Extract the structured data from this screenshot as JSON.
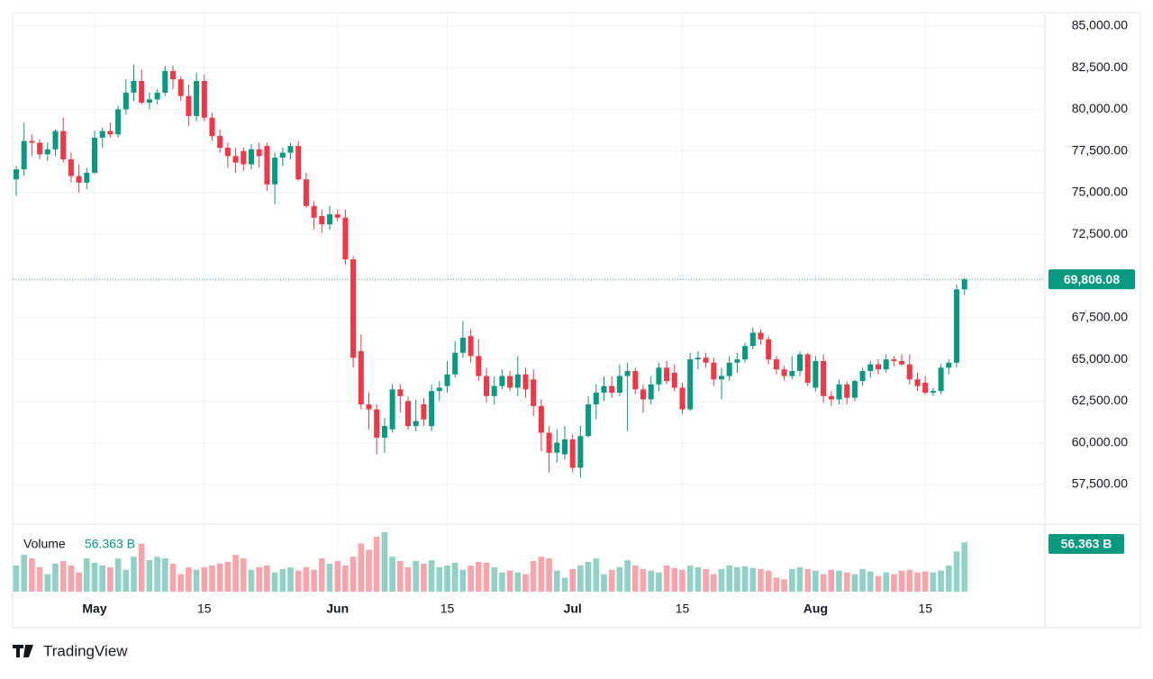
{
  "chart_data": {
    "type": "candlestick",
    "dates": [
      "Apr 21",
      "Apr 22",
      "Apr 23",
      "Apr 24",
      "Apr 25",
      "Apr 26",
      "Apr 27",
      "Apr 28",
      "Apr 29",
      "Apr 30",
      "May 1",
      "May 2",
      "May 3",
      "May 4",
      "May 5",
      "May 6",
      "May 7",
      "May 8",
      "May 9",
      "May 10",
      "May 11",
      "May 12",
      "May 13",
      "May 14",
      "May 15",
      "May 16",
      "May 17",
      "May 18",
      "May 19",
      "May 20",
      "May 21",
      "May 22",
      "May 23",
      "May 24",
      "May 25",
      "May 26",
      "May 27",
      "May 28",
      "May 29",
      "May 30",
      "May 31",
      "Jun 1",
      "Jun 2",
      "Jun 3",
      "Jun 4",
      "Jun 5",
      "Jun 6",
      "Jun 7",
      "Jun 8",
      "Jun 9",
      "Jun 10",
      "Jun 11",
      "Jun 12",
      "Jun 13",
      "Jun 14",
      "Jun 15",
      "Jun 16",
      "Jun 17",
      "Jun 18",
      "Jun 19",
      "Jun 20",
      "Jun 21",
      "Jun 22",
      "Jun 23",
      "Jun 24",
      "Jun 25",
      "Jun 26",
      "Jun 27",
      "Jun 28",
      "Jun 29",
      "Jun 30",
      "Jul 1",
      "Jul 2",
      "Jul 3",
      "Jul 4",
      "Jul 5",
      "Jul 6",
      "Jul 7",
      "Jul 8",
      "Jul 9",
      "Jul 10",
      "Jul 11",
      "Jul 12",
      "Jul 13",
      "Jul 14",
      "Jul 15",
      "Jul 16",
      "Jul 17",
      "Jul 18",
      "Jul 19",
      "Jul 20",
      "Jul 21",
      "Jul 22",
      "Jul 23",
      "Jul 24",
      "Jul 25",
      "Jul 26",
      "Jul 27",
      "Jul 28",
      "Jul 29",
      "Jul 30",
      "Jul 31",
      "Aug 1",
      "Aug 2",
      "Aug 3",
      "Aug 4",
      "Aug 5",
      "Aug 6",
      "Aug 7",
      "Aug 8",
      "Aug 9",
      "Aug 10",
      "Aug 11",
      "Aug 12",
      "Aug 13",
      "Aug 14",
      "Aug 15",
      "Aug 16",
      "Aug 17",
      "Aug 18",
      "Aug 19",
      "Aug 20"
    ],
    "open": [
      75800,
      76400,
      78100,
      78000,
      77300,
      77600,
      78700,
      77000,
      76000,
      75600,
      76200,
      78300,
      78700,
      78500,
      80000,
      81000,
      81700,
      80400,
      80600,
      81000,
      82300,
      81800,
      80800,
      79600,
      81700,
      79500,
      78400,
      77700,
      77200,
      77500,
      76700,
      77600,
      77800,
      75500,
      77100,
      77400,
      77800,
      75800,
      74200,
      73600,
      73100,
      73700,
      73500,
      71000,
      65500,
      62300,
      62000,
      60300,
      60800,
      63200,
      62500,
      61000,
      62300,
      61000,
      63100,
      63400,
      64100,
      65400,
      66400,
      65200,
      64000,
      62800,
      63400,
      64000,
      63300,
      64100,
      63800,
      62200,
      60600,
      59400,
      59300,
      60200,
      58500,
      60400,
      62300,
      63000,
      63400,
      63000,
      64000,
      64300,
      63200,
      62600,
      63500,
      64500,
      64200,
      63300,
      62000,
      65000,
      65100,
      64800,
      63800,
      64000,
      64800,
      65000,
      65800,
      66600,
      66200,
      65000,
      64400,
      64000,
      64300,
      65300,
      63300,
      64900,
      62800,
      62600,
      63500,
      62700,
      63700,
      64300,
      64700,
      64400,
      65000,
      64900,
      64700,
      63800,
      63600,
      63000,
      63100,
      64500,
      64800,
      69200
    ],
    "high": [
      76600,
      79200,
      78500,
      78200,
      78000,
      78800,
      79500,
      77400,
      76700,
      76500,
      78700,
      78900,
      79200,
      80200,
      81800,
      82700,
      82400,
      81000,
      81200,
      82600,
      82600,
      82000,
      81500,
      82200,
      82100,
      79800,
      78800,
      78000,
      77700,
      77700,
      77900,
      78000,
      78000,
      77400,
      77700,
      78000,
      78100,
      76200,
      74500,
      74000,
      74200,
      74000,
      74000,
      71200,
      66500,
      63000,
      62300,
      61500,
      63500,
      63500,
      62800,
      62600,
      62700,
      63500,
      63700,
      64900,
      66100,
      67300,
      66800,
      66200,
      64500,
      64000,
      64400,
      64300,
      65200,
      64500,
      64400,
      62600,
      61000,
      60800,
      61000,
      60500,
      61000,
      62800,
      63500,
      64000,
      64000,
      64700,
      64800,
      64500,
      63500,
      64000,
      64800,
      64900,
      64700,
      63600,
      65400,
      65500,
      65400,
      65100,
      64500,
      65200,
      65400,
      66000,
      66900,
      66800,
      66400,
      65200,
      64600,
      65200,
      65500,
      65400,
      65200,
      65300,
      63100,
      63800,
      63700,
      63800,
      64500,
      64900,
      65000,
      65300,
      65200,
      65300,
      65300,
      64200,
      64000,
      63300,
      64700,
      65000,
      69500,
      69900
    ],
    "low": [
      74800,
      76000,
      77200,
      77000,
      76900,
      77200,
      76800,
      75600,
      75000,
      75200,
      76100,
      77700,
      78300,
      78300,
      79700,
      80500,
      80300,
      80000,
      80300,
      80800,
      81200,
      80500,
      79000,
      79300,
      79300,
      78100,
      77400,
      76500,
      76200,
      76300,
      76400,
      76500,
      75100,
      74300,
      76600,
      77000,
      75700,
      74100,
      72800,
      72600,
      72800,
      73300,
      70700,
      64500,
      62000,
      60800,
      59300,
      59400,
      60600,
      61800,
      60800,
      60700,
      61000,
      60700,
      62500,
      63000,
      63900,
      65100,
      64800,
      63700,
      62400,
      62300,
      63200,
      63100,
      62800,
      62700,
      61600,
      59500,
      58200,
      58800,
      59000,
      58200,
      57900,
      60300,
      61400,
      62500,
      62700,
      62800,
      60700,
      62900,
      61800,
      62300,
      63100,
      63500,
      63100,
      61700,
      61900,
      64400,
      64500,
      63400,
      62600,
      63700,
      64200,
      64800,
      65600,
      65900,
      64700,
      64100,
      63700,
      63800,
      64000,
      63400,
      63100,
      62400,
      62200,
      62300,
      62300,
      62500,
      63400,
      63900,
      64100,
      64200,
      64600,
      64600,
      63500,
      63100,
      62900,
      62800,
      62900,
      64100,
      64500,
      68900
    ],
    "close": [
      76400,
      78100,
      78000,
      77300,
      77600,
      78700,
      77000,
      76000,
      75600,
      76200,
      78300,
      78700,
      78500,
      80000,
      81000,
      81700,
      80400,
      80600,
      81000,
      82300,
      81800,
      80800,
      79600,
      81700,
      79500,
      78400,
      77700,
      77200,
      76800,
      76700,
      77600,
      77200,
      75500,
      77100,
      77400,
      77800,
      75800,
      74200,
      73500,
      73100,
      73700,
      73500,
      71000,
      65100,
      62300,
      62000,
      60300,
      61000,
      63200,
      62800,
      61000,
      61300,
      61400,
      63100,
      63300,
      64100,
      65400,
      66300,
      65200,
      64000,
      62800,
      63400,
      64000,
      63300,
      64100,
      63200,
      62200,
      60600,
      59400,
      60000,
      60200,
      58500,
      60400,
      62300,
      63000,
      63400,
      63000,
      64000,
      64300,
      63200,
      62600,
      63500,
      64500,
      63700,
      63300,
      62000,
      65000,
      65100,
      64800,
      63800,
      64000,
      64800,
      65000,
      65800,
      66600,
      66200,
      65000,
      64400,
      64000,
      64300,
      65300,
      63600,
      64900,
      62800,
      62600,
      63500,
      62700,
      63700,
      64300,
      64700,
      64400,
      65000,
      64900,
      64700,
      63800,
      63400,
      63000,
      63100,
      64500,
      64800,
      69200,
      69806.08
    ],
    "volume_title": "Volume",
    "volume": [
      30,
      42,
      38,
      28,
      20,
      32,
      35,
      30,
      22,
      38,
      33,
      30,
      28,
      38,
      25,
      40,
      55,
      36,
      40,
      38,
      32,
      20,
      28,
      25,
      28,
      30,
      32,
      34,
      42,
      38,
      25,
      28,
      30,
      22,
      26,
      28,
      24,
      28,
      25,
      38,
      32,
      35,
      30,
      40,
      55,
      48,
      63,
      68,
      40,
      35,
      28,
      35,
      32,
      36,
      28,
      30,
      33,
      25,
      30,
      34,
      33,
      28,
      22,
      24,
      22,
      20,
      35,
      40,
      38,
      24,
      16,
      26,
      30,
      34,
      38,
      20,
      25,
      28,
      36,
      30,
      26,
      24,
      22,
      30,
      27,
      25,
      30,
      28,
      26,
      20,
      26,
      30,
      28,
      29,
      27,
      26,
      24,
      16,
      14,
      26,
      28,
      26,
      24,
      20,
      25,
      24,
      22,
      20,
      26,
      23,
      18,
      22,
      20,
      24,
      25,
      22,
      23,
      22,
      24,
      30,
      46,
      56.363
    ],
    "volume_last_label": "56.363 B",
    "last_price_label": "69,806.08",
    "ylim": [
      55225,
      85750
    ],
    "yticks": [
      {
        "value": 57500,
        "label": "57,500.00"
      },
      {
        "value": 60000,
        "label": "60,000.00"
      },
      {
        "value": 62500,
        "label": "62,500.00"
      },
      {
        "value": 65000,
        "label": "65,000.00"
      },
      {
        "value": 67500,
        "label": "67,500.00"
      },
      {
        "value": 70000,
        "label": "70,000.00"
      },
      {
        "value": 72500,
        "label": "72,500.00"
      },
      {
        "value": 75000,
        "label": "75,000.00"
      },
      {
        "value": 77500,
        "label": "77,500.00"
      },
      {
        "value": 80000,
        "label": "80,000.00"
      },
      {
        "value": 82500,
        "label": "82,500.00"
      },
      {
        "value": 85000,
        "label": "85,000.00"
      }
    ],
    "xticks": [
      {
        "value": "May 1",
        "label": "May"
      },
      {
        "value": "May 15",
        "label": "15"
      },
      {
        "value": "Jun 1",
        "label": "Jun"
      },
      {
        "value": "Jun 15",
        "label": "15"
      },
      {
        "value": "Jul 1",
        "label": "Jul"
      },
      {
        "value": "Jul 15",
        "label": "15"
      },
      {
        "value": "Aug 1",
        "label": "Aug"
      },
      {
        "value": "Aug 15",
        "label": "15"
      }
    ],
    "grid": true,
    "up_color": "#089981",
    "down_color": "#f23645"
  },
  "brand": "TradingView"
}
